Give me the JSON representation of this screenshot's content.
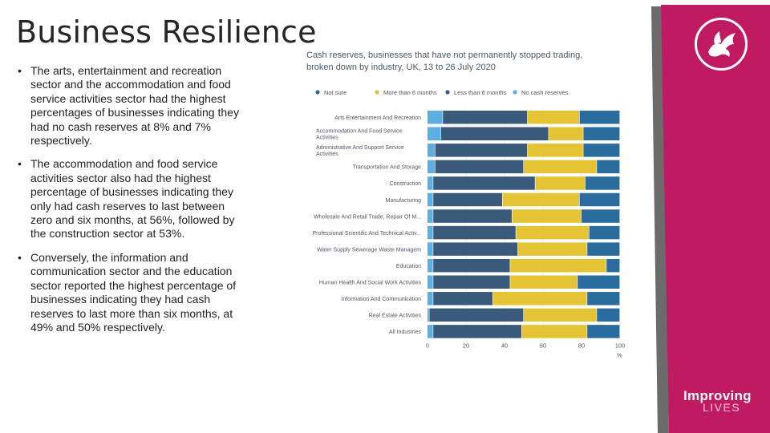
{
  "slide": {
    "title": "Business Resilience",
    "bullets": [
      "The arts, entertainment and recreation sector and the accommodation and food service activities sector had the highest percentages of businesses indicating they had no cash reserves at 8% and 7% respectively.",
      "The accommodation and food service activities sector also had the highest percentage of businesses indicating they only had cash reserves to last between zero and six months, at 56%, followed by the construction sector at 53%.",
      "Conversely, the information and communication sector and the education sector reported the highest percentage of businesses indicating they had cash reserves to last more than six months, at 49% and 50% respectively."
    ],
    "brand": {
      "line1": "Improving",
      "line2": "LIVES"
    }
  },
  "colors": {
    "no_cash": "#5aaee0",
    "less_6": "#3a5a7c",
    "more_6": "#e4c334",
    "not_sure": "#2a6c9e",
    "brand": "#c01b62",
    "panel_dark": "#6b6b6b",
    "logo": "#ffffff"
  },
  "chart_data": {
    "type": "bar",
    "orientation": "horizontal",
    "stacked": true,
    "title": "Cash reserves, businesses that have not permanently stopped trading, broken down by industry, UK, 13 to 26 July 2020",
    "xlabel": "%",
    "xlim": [
      0,
      100
    ],
    "xticks": [
      0,
      20,
      40,
      60,
      80,
      100
    ],
    "legend": [
      "Not sure",
      "More than 6 months",
      "Less than 6 months",
      "No cash reserves"
    ],
    "categories": [
      "Arts Entertainment And Recreation",
      "Accommodation And Food Service Activities",
      "Administrative And Support Service Activities",
      "Transportation And Storage",
      "Construction",
      "Manufacturing",
      "Wholesale And Retail Trade; Repair Of M...",
      "Professional Scientific And Technical Activ...",
      "Water Supply Sewerage Waste Managem",
      "Education",
      "Human Health And Social Work Activities",
      "Information And Communication",
      "Real Estate Activities",
      "All Industries"
    ],
    "series": [
      {
        "name": "No cash reserves",
        "key": "no_cash",
        "values": [
          8,
          7,
          4,
          4,
          3,
          3,
          3,
          3,
          3,
          3,
          3,
          3,
          1,
          3
        ]
      },
      {
        "name": "Less than 6 months",
        "key": "less_6",
        "values": [
          44,
          56,
          48,
          46,
          53,
          36,
          41,
          43,
          44,
          40,
          40,
          31,
          49,
          46
        ]
      },
      {
        "name": "More than 6 months",
        "key": "more_6",
        "values": [
          27,
          18,
          29,
          38,
          26,
          40,
          36,
          38,
          36,
          50,
          35,
          49,
          38,
          34
        ]
      },
      {
        "name": "Not sure",
        "key": "not_sure",
        "values": [
          21,
          19,
          19,
          12,
          18,
          21,
          20,
          16,
          17,
          7,
          22,
          17,
          12,
          17
        ]
      }
    ]
  }
}
